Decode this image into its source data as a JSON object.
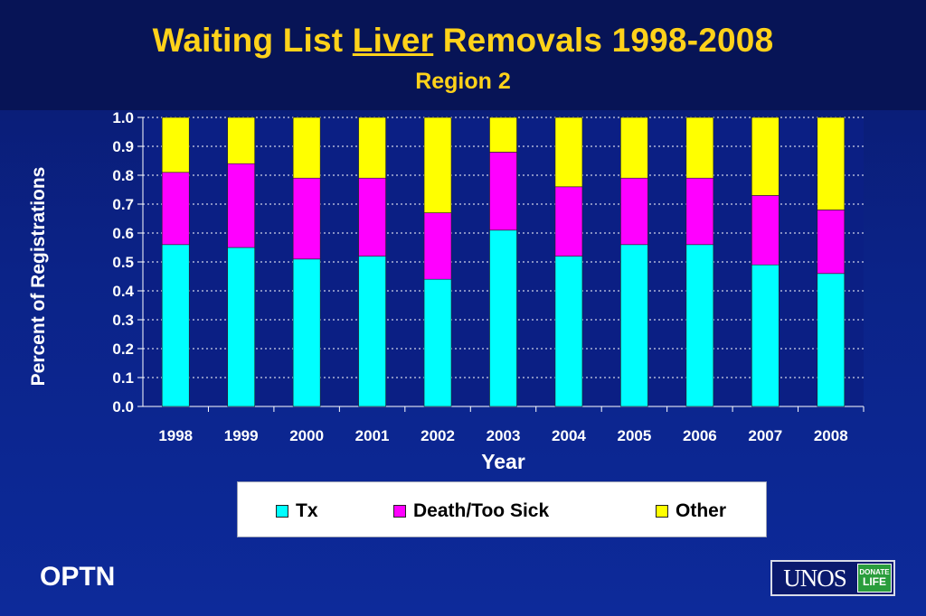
{
  "title_parts": {
    "before": "Waiting List ",
    "underlined": "Liver",
    "after": " Removals 1998-2008"
  },
  "subtitle": "Region 2",
  "footer": {
    "org": "OPTN",
    "logo_text": "UNOS",
    "logo_badge_line1": "DONATE",
    "logo_badge_line2": "LIFE"
  },
  "colors": {
    "Tx": "#00ffff",
    "Death/Too Sick": "#ff00ff",
    "Other": "#ffff00",
    "title": "#ffd21a"
  },
  "chart_data": {
    "type": "bar",
    "stacked": true,
    "title": "Waiting List Liver Removals 1998-2008",
    "subtitle": "Region 2",
    "xlabel": "Year",
    "ylabel": "Percent of Registrations",
    "ylim": [
      0,
      1.0
    ],
    "yticks": [
      "0.0",
      "0.1",
      "0.2",
      "0.3",
      "0.4",
      "0.5",
      "0.6",
      "0.7",
      "0.8",
      "0.9",
      "1.0"
    ],
    "grid": true,
    "legend": "bottom",
    "categories": [
      "1998",
      "1999",
      "2000",
      "2001",
      "2002",
      "2003",
      "2004",
      "2005",
      "2006",
      "2007",
      "2008"
    ],
    "series": [
      {
        "name": "Tx",
        "values": [
          0.56,
          0.55,
          0.51,
          0.52,
          0.44,
          0.61,
          0.52,
          0.56,
          0.56,
          0.49,
          0.46
        ]
      },
      {
        "name": "Death/Too Sick",
        "values": [
          0.25,
          0.29,
          0.28,
          0.27,
          0.23,
          0.27,
          0.24,
          0.23,
          0.23,
          0.24,
          0.22
        ]
      },
      {
        "name": "Other",
        "values": [
          0.19,
          0.16,
          0.21,
          0.21,
          0.33,
          0.12,
          0.24,
          0.21,
          0.21,
          0.27,
          0.32
        ]
      }
    ]
  }
}
